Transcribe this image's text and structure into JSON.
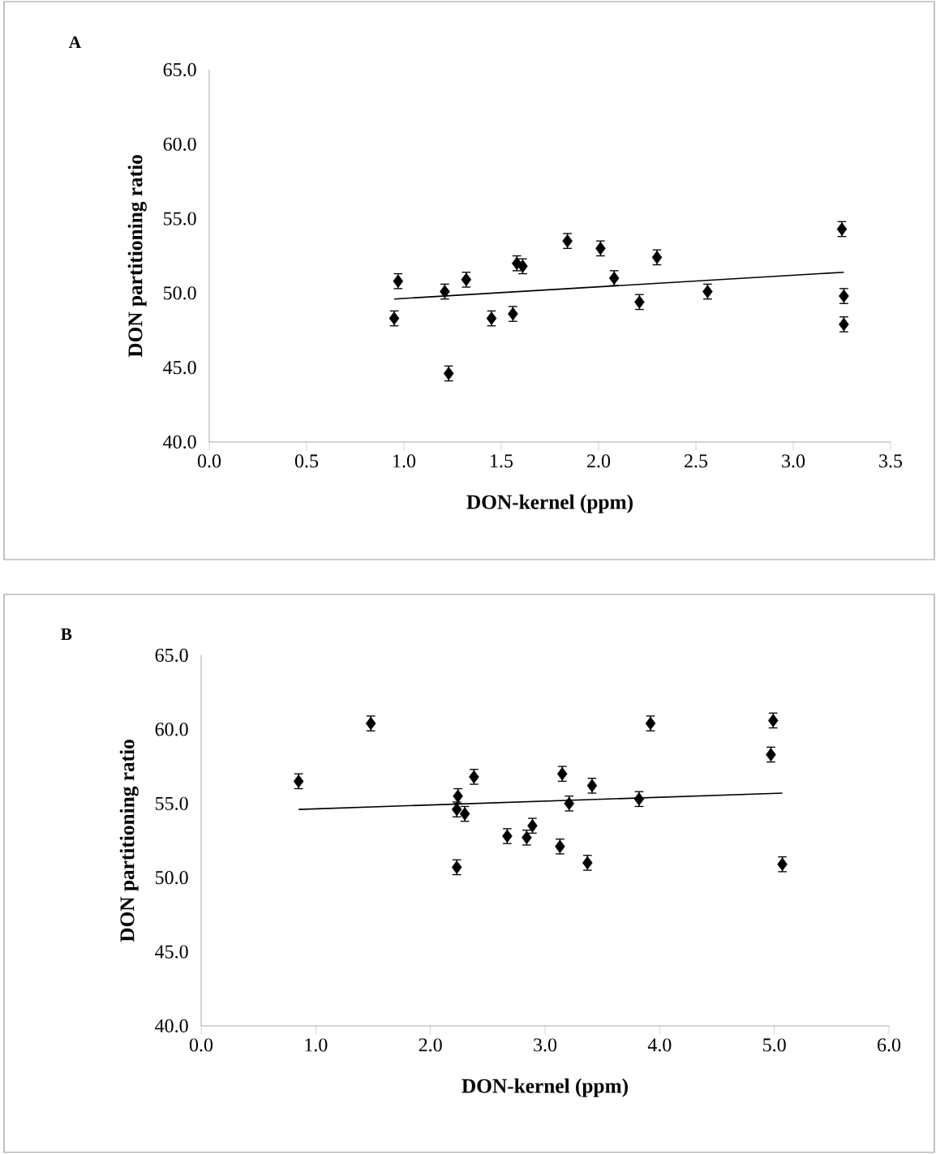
{
  "chart_data": [
    {
      "type": "scatter",
      "title": "A",
      "xlabel": "DON-kernel (ppm)",
      "ylabel": "DON partitioning ratio",
      "xlim": [
        0,
        3.5
      ],
      "ylim": [
        40,
        65
      ],
      "xticks": [
        {
          "value": 0,
          "label": "0.0"
        },
        {
          "value": 0.5,
          "label": "0.5"
        },
        {
          "value": 1,
          "label": "1.0"
        },
        {
          "value": 1.5,
          "label": "1.5"
        },
        {
          "value": 2,
          "label": "2.0"
        },
        {
          "value": 2.5,
          "label": "2.5"
        },
        {
          "value": 3,
          "label": "3.0"
        },
        {
          "value": 3.5,
          "label": "3.5"
        }
      ],
      "yticks": [
        {
          "value": 40,
          "label": "40.0"
        },
        {
          "value": 45,
          "label": "45.0"
        },
        {
          "value": 50,
          "label": "50.0"
        },
        {
          "value": 55,
          "label": "55.0"
        },
        {
          "value": 60,
          "label": "60.0"
        },
        {
          "value": 65,
          "label": "65.0"
        }
      ],
      "series": [
        {
          "marker": "diamond",
          "color": "#000000",
          "x": [
            0.95,
            0.97,
            1.21,
            1.23,
            1.32,
            1.45,
            1.56,
            1.58,
            1.61,
            1.84,
            2.01,
            2.08,
            2.21,
            2.3,
            2.56,
            3.25,
            3.26,
            3.26
          ],
          "values": [
            48.3,
            50.8,
            50.1,
            44.6,
            50.9,
            48.3,
            48.6,
            52.0,
            51.8,
            53.5,
            53.0,
            51.0,
            49.4,
            52.4,
            50.1,
            54.3,
            49.8,
            47.9
          ],
          "errors": [
            0.5,
            0.5,
            0.5,
            0.5,
            0.5,
            0.5,
            0.5,
            0.5,
            0.5,
            0.5,
            0.5,
            0.5,
            0.5,
            0.5,
            0.5,
            0.5,
            0.5,
            0.5
          ]
        },
        {
          "type": "line",
          "marker": "none",
          "color": "#000000",
          "x": [
            0.95,
            3.26
          ],
          "values": [
            49.6,
            51.4
          ]
        }
      ]
    },
    {
      "type": "scatter",
      "title": "B",
      "xlabel": "DON-kernel  (ppm)",
      "ylabel": "DON partitioning ratio",
      "xlim": [
        0,
        6
      ],
      "ylim": [
        40,
        65
      ],
      "xticks": [
        {
          "value": 0,
          "label": "0.0"
        },
        {
          "value": 1,
          "label": "1.0"
        },
        {
          "value": 2,
          "label": "2.0"
        },
        {
          "value": 3,
          "label": "3.0"
        },
        {
          "value": 4,
          "label": "4.0"
        },
        {
          "value": 5,
          "label": "5.0"
        },
        {
          "value": 6,
          "label": "6.0"
        }
      ],
      "yticks": [
        {
          "value": 40,
          "label": "40.0"
        },
        {
          "value": 45,
          "label": "45.0"
        },
        {
          "value": 50,
          "label": "50.0"
        },
        {
          "value": 55,
          "label": "55.0"
        },
        {
          "value": 60,
          "label": "60.0"
        },
        {
          "value": 65,
          "label": "65.0"
        }
      ],
      "series": [
        {
          "marker": "diamond",
          "color": "#000000",
          "x": [
            0.85,
            1.48,
            2.23,
            2.24,
            2.23,
            2.3,
            2.38,
            2.67,
            2.84,
            2.89,
            3.13,
            3.15,
            3.21,
            3.37,
            3.41,
            3.82,
            3.92,
            4.97,
            4.99,
            5.07
          ],
          "values": [
            56.5,
            60.4,
            50.7,
            55.5,
            54.6,
            54.3,
            56.8,
            52.8,
            52.7,
            53.5,
            52.1,
            57.0,
            55.0,
            51.0,
            56.2,
            55.3,
            60.4,
            58.3,
            60.6,
            50.9
          ],
          "errors": [
            0.5,
            0.5,
            0.5,
            0.5,
            0.5,
            0.5,
            0.5,
            0.5,
            0.5,
            0.5,
            0.5,
            0.5,
            0.5,
            0.5,
            0.5,
            0.5,
            0.5,
            0.5,
            0.5,
            0.5
          ]
        },
        {
          "type": "line",
          "marker": "none",
          "color": "#000000",
          "x": [
            0.85,
            5.07
          ],
          "values": [
            54.6,
            55.7
          ]
        }
      ]
    }
  ]
}
